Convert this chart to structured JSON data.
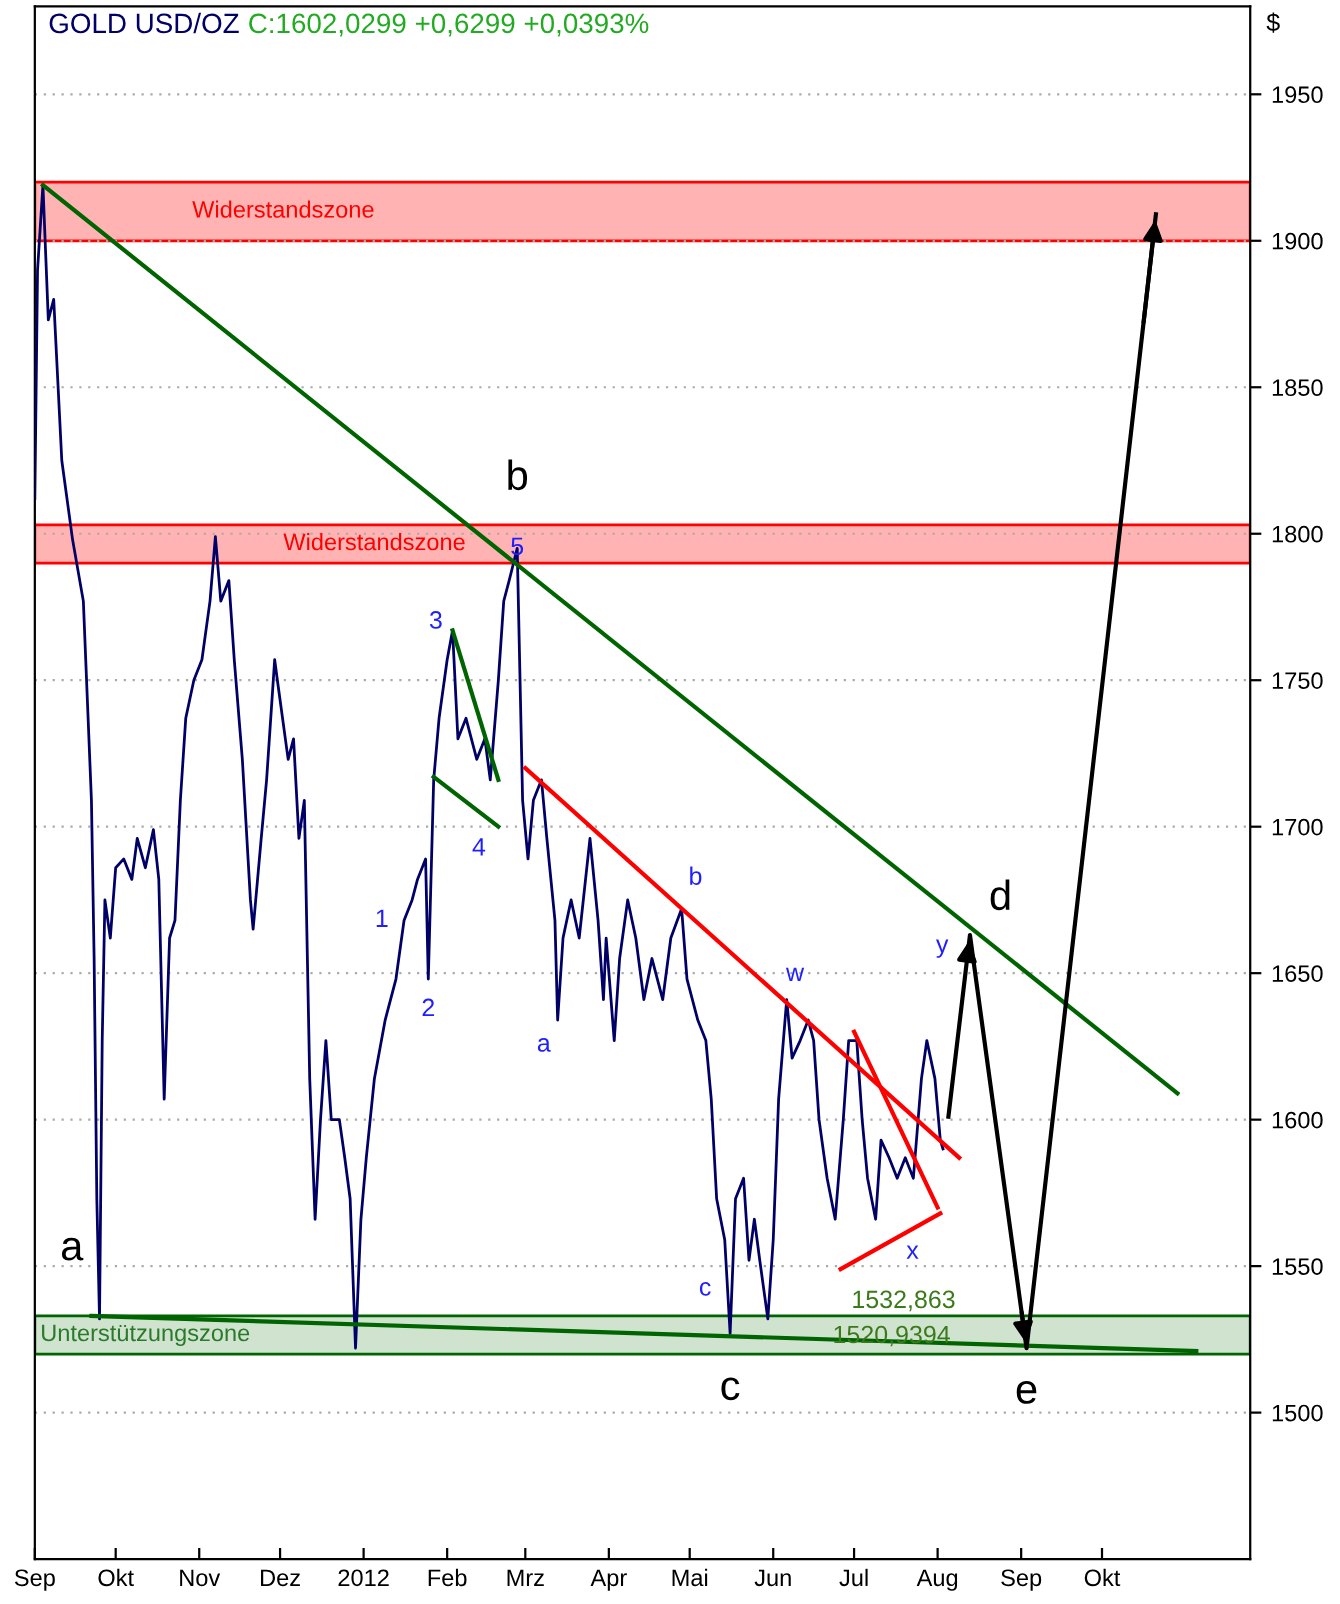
{
  "chart_data": {
    "type": "line",
    "title": "GOLD USD/OZ",
    "subtitle": "C:1602,0299 +0,6299 +0,0393%",
    "ylabel": "$",
    "xlim": [
      "2011-09-01",
      "2012-11-25"
    ],
    "ylim": [
      1450,
      1980
    ],
    "xticks": [
      {
        "value": "2011-09-01",
        "label": "Sep"
      },
      {
        "value": "2011-10-01",
        "label": "Okt"
      },
      {
        "value": "2011-11-01",
        "label": "Nov"
      },
      {
        "value": "2011-12-01",
        "label": "Dez"
      },
      {
        "value": "2012-01-01",
        "label": "2012"
      },
      {
        "value": "2012-02-01",
        "label": "Feb"
      },
      {
        "value": "2012-03-01",
        "label": "Mrz"
      },
      {
        "value": "2012-04-01",
        "label": "Apr"
      },
      {
        "value": "2012-05-01",
        "label": "Mai"
      },
      {
        "value": "2012-06-01",
        "label": "Jun"
      },
      {
        "value": "2012-07-01",
        "label": "Jul"
      },
      {
        "value": "2012-08-01",
        "label": "Aug"
      },
      {
        "value": "2012-09-01",
        "label": "Sep"
      },
      {
        "value": "2012-10-01",
        "label": "Okt"
      }
    ],
    "yticks": [
      1500,
      1550,
      1600,
      1650,
      1700,
      1750,
      1800,
      1850,
      1900,
      1950
    ],
    "grid": "y",
    "legend": false,
    "marker": "none",
    "bands": [
      {
        "axis": "y",
        "from": 1900,
        "to": 1920,
        "label": "Widerstandszone",
        "color": "#ffb3b3"
      },
      {
        "axis": "y",
        "from": 1790,
        "to": 1803,
        "label": "Widerstandszone",
        "color": "#ffb3b3"
      },
      {
        "axis": "y",
        "from": 1520,
        "to": 1533,
        "label": "Unterstützungszone",
        "color": "#cfe3cf"
      }
    ],
    "series": [
      {
        "color": "#000066",
        "x": [
          "2011-09-01",
          "2011-09-02",
          "2011-09-04",
          "2011-09-06",
          "2011-09-08",
          "2011-09-11",
          "2011-09-15",
          "2011-09-19",
          "2011-09-22",
          "2011-09-23",
          "2011-09-24",
          "2011-09-25",
          "2011-09-26",
          "2011-09-27",
          "2011-09-29",
          "2011-10-01",
          "2011-10-04",
          "2011-10-07",
          "2011-10-09",
          "2011-10-12",
          "2011-10-15",
          "2011-10-17",
          "2011-10-19",
          "2011-10-21",
          "2011-10-23",
          "2011-10-25",
          "2011-10-27",
          "2011-10-30",
          "2011-11-02",
          "2011-11-05",
          "2011-11-07",
          "2011-11-09",
          "2011-11-12",
          "2011-11-14",
          "2011-11-17",
          "2011-11-20",
          "2011-11-21",
          "2011-11-24",
          "2011-11-26",
          "2011-11-29",
          "2011-11-30",
          "2011-12-04",
          "2011-12-06",
          "2011-12-08",
          "2011-12-10",
          "2011-12-12",
          "2011-12-14",
          "2011-12-16",
          "2011-12-18",
          "2011-12-20",
          "2011-12-23",
          "2011-12-25",
          "2011-12-27",
          "2011-12-29",
          "2011-12-31",
          "2012-01-02",
          "2012-01-05",
          "2012-01-09",
          "2012-01-13",
          "2012-01-16",
          "2012-01-19",
          "2012-01-21",
          "2012-01-24",
          "2012-01-25",
          "2012-01-27",
          "2012-01-29",
          "2012-02-01",
          "2012-02-03",
          "2012-02-05",
          "2012-02-08",
          "2012-02-12",
          "2012-02-15",
          "2012-02-17",
          "2012-02-20",
          "2012-02-22",
          "2012-02-24",
          "2012-02-27",
          "2012-02-29",
          "2012-03-02",
          "2012-03-04",
          "2012-03-07",
          "2012-03-09",
          "2012-03-12",
          "2012-03-13",
          "2012-03-15",
          "2012-03-18",
          "2012-03-21",
          "2012-03-25",
          "2012-03-28",
          "2012-03-30",
          "2012-03-31",
          "2012-04-03",
          "2012-04-05",
          "2012-04-08",
          "2012-04-11",
          "2012-04-14",
          "2012-04-17",
          "2012-04-21",
          "2012-04-24",
          "2012-04-28",
          "2012-04-30",
          "2012-05-04",
          "2012-05-07",
          "2012-05-09",
          "2012-05-11",
          "2012-05-14",
          "2012-05-16",
          "2012-05-18",
          "2012-05-21",
          "2012-05-23",
          "2012-05-25",
          "2012-05-27",
          "2012-05-30",
          "2012-06-01",
          "2012-06-03",
          "2012-06-06",
          "2012-06-08",
          "2012-06-11",
          "2012-06-14",
          "2012-06-16",
          "2012-06-18",
          "2012-06-21",
          "2012-06-24",
          "2012-06-27",
          "2012-06-29",
          "2012-07-02",
          "2012-07-04",
          "2012-07-06",
          "2012-07-09",
          "2012-07-11",
          "2012-07-14",
          "2012-07-17",
          "2012-07-20",
          "2012-07-23",
          "2012-07-26",
          "2012-07-28",
          "2012-07-31",
          "2012-08-02",
          "2012-08-03"
        ],
        "values": [
          1812,
          1890,
          1919,
          1873,
          1880,
          1825,
          1798,
          1777,
          1709,
          1655,
          1573,
          1532,
          1627,
          1675,
          1662,
          1686,
          1689,
          1682,
          1696,
          1686,
          1699,
          1682,
          1607,
          1662,
          1668,
          1709,
          1737,
          1750,
          1757,
          1777,
          1799,
          1777,
          1784,
          1757,
          1723,
          1675,
          1665,
          1696,
          1716,
          1757,
          1750,
          1723,
          1730,
          1696,
          1709,
          1614,
          1566,
          1600,
          1627,
          1600,
          1600,
          1587,
          1573,
          1522,
          1566,
          1587,
          1614,
          1634,
          1648,
          1668,
          1675,
          1682,
          1689,
          1648,
          1716,
          1737,
          1757,
          1767,
          1730,
          1737,
          1723,
          1730,
          1716,
          1750,
          1777,
          1784,
          1795,
          1709,
          1689,
          1709,
          1716,
          1696,
          1668,
          1634,
          1662,
          1675,
          1662,
          1696,
          1668,
          1641,
          1662,
          1627,
          1655,
          1675,
          1662,
          1641,
          1655,
          1641,
          1662,
          1672,
          1648,
          1634,
          1627,
          1607,
          1573,
          1559,
          1527,
          1573,
          1580,
          1552,
          1566,
          1552,
          1532,
          1559,
          1607,
          1641,
          1621,
          1627,
          1634,
          1627,
          1600,
          1580,
          1566,
          1600,
          1627,
          1627,
          1600,
          1580,
          1566,
          1593,
          1587,
          1580,
          1587,
          1580,
          1614,
          1627,
          1614,
          1593,
          1590
        ]
      },
      {
        "color": "#006400",
        "x": [
          "2011-09-04",
          "2012-10-29"
        ],
        "values": [
          1919,
          1609
        ]
      },
      {
        "color": "#006400",
        "x": [
          "2011-09-22",
          "2012-11-05"
        ],
        "values": [
          1533,
          1521
        ]
      },
      {
        "color": "#ff0000",
        "x": [
          "2012-03-01",
          "2012-08-09"
        ],
        "values": [
          1720,
          1587
        ]
      },
      {
        "color": "#006400",
        "x": [
          "2012-02-03",
          "2012-02-20"
        ],
        "values": [
          1767,
          1716
        ]
      },
      {
        "color": "#006400",
        "x": [
          "2012-01-27",
          "2012-02-20"
        ],
        "values": [
          1717,
          1700
        ]
      },
      {
        "color": "#ff0000",
        "x": [
          "2012-07-01",
          "2012-08-01"
        ],
        "values": [
          1630,
          1570
        ]
      },
      {
        "color": "#ff0000",
        "x": [
          "2012-06-26",
          "2012-08-02"
        ],
        "values": [
          1549,
          1568
        ]
      },
      {
        "color": "#000000",
        "x": [
          "2012-08-05",
          "2012-08-13",
          "2012-09-03",
          "2012-10-21"
        ],
        "values": [
          1601,
          1663,
          1522,
          1909
        ]
      }
    ],
    "annotations": [
      {
        "text": "a",
        "x": "2011-09-25",
        "y": 1532
      },
      {
        "text": "b",
        "x": "2012-02-27",
        "y": 1795
      },
      {
        "text": "c",
        "x": "2012-05-16",
        "y": 1527
      },
      {
        "text": "d",
        "x": "2012-08-13",
        "y": 1663
      },
      {
        "text": "e",
        "x": "2012-09-03",
        "y": 1522
      },
      {
        "text": "1",
        "x": "2012-01-16",
        "y": 1668
      },
      {
        "text": "2",
        "x": "2012-01-25",
        "y": 1648
      },
      {
        "text": "3",
        "x": "2012-02-03",
        "y": 1767
      },
      {
        "text": "4",
        "x": "2012-02-20",
        "y": 1700
      },
      {
        "text": "5",
        "x": "2012-02-27",
        "y": 1795
      },
      {
        "text": "a",
        "x": "2012-03-13",
        "y": 1634
      },
      {
        "text": "b",
        "x": "2012-04-28",
        "y": 1672
      },
      {
        "text": "c",
        "x": "2012-05-16",
        "y": 1527
      },
      {
        "text": "w",
        "x": "2012-06-06",
        "y": 1641
      },
      {
        "text": "x",
        "x": "2012-08-02",
        "y": 1568
      },
      {
        "text": "y",
        "x": "2012-08-13",
        "y": 1663
      },
      {
        "text": "1532,863",
        "x": "2012-06-30",
        "y": 1533
      },
      {
        "text": "1520,9394",
        "x": "2012-06-23",
        "y": 1521
      }
    ]
  }
}
